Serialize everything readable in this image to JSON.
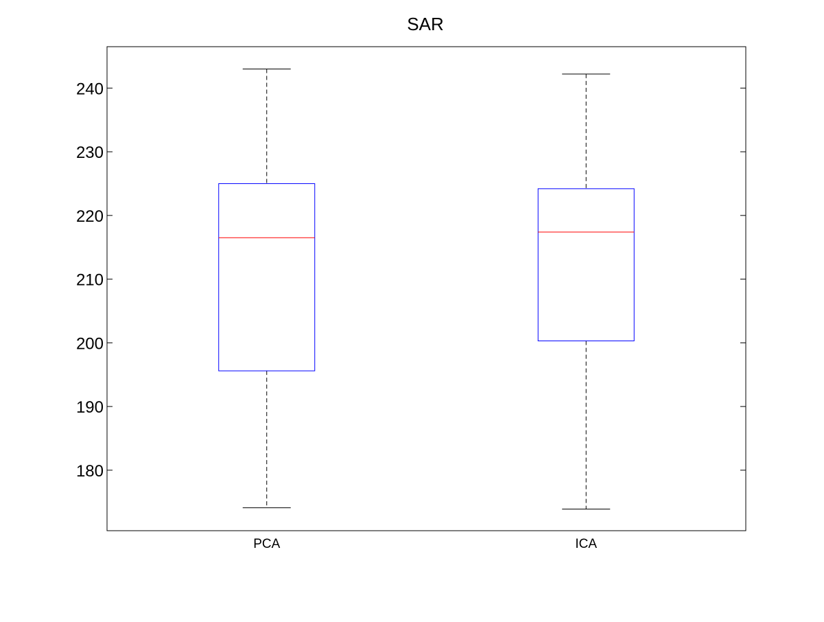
{
  "chart_data": {
    "type": "box",
    "title": "SAR",
    "xlabel": "",
    "ylabel": "",
    "categories": [
      "PCA",
      "ICA"
    ],
    "ylim": [
      170.5,
      246.5
    ],
    "yticks": [
      180,
      190,
      200,
      210,
      220,
      230,
      240
    ],
    "grid": false,
    "boxes": [
      {
        "category": "PCA",
        "whisker_low": 174.1,
        "q1": 195.6,
        "median": 216.5,
        "q3": 225.0,
        "whisker_high": 243.0
      },
      {
        "category": "ICA",
        "whisker_low": 173.9,
        "q1": 200.3,
        "median": 217.4,
        "q3": 224.2,
        "whisker_high": 242.2
      }
    ],
    "colors": {
      "box": "#0000ff",
      "median": "#ff0000",
      "whisker": "#000000",
      "axes": "#000000"
    }
  }
}
